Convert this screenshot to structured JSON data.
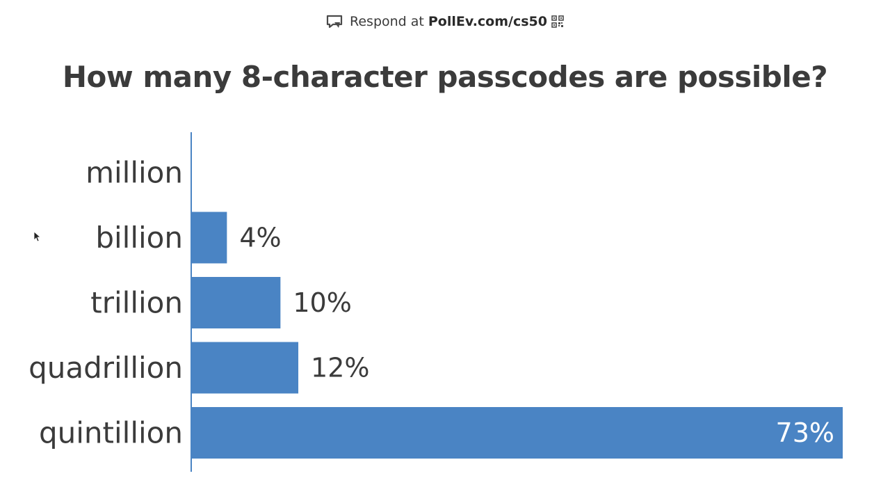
{
  "header": {
    "respond_prefix": "Respond at",
    "respond_url": "PollEv.com/cs50",
    "chat_icon": "chat-bubble-icon",
    "qr_icon": "qr-code-icon"
  },
  "question": "How many 8-character passcodes are possible?",
  "chart_data": {
    "type": "bar",
    "orientation": "horizontal",
    "title": "How many 8-character passcodes are possible?",
    "categories": [
      "million",
      "billion",
      "trillion",
      "quadrillion",
      "quintillion"
    ],
    "values": [
      0,
      4,
      10,
      12,
      73
    ],
    "value_labels": [
      "",
      "4%",
      "10%",
      "12%",
      "73%"
    ],
    "unit": "%",
    "xlim": [
      0,
      73
    ],
    "grid": false,
    "legend": "none",
    "colors": {
      "bar": "#4a84c4",
      "axis": "#4a84c4",
      "label": "#3b3b3b",
      "label_inside": "#ffffff"
    }
  }
}
